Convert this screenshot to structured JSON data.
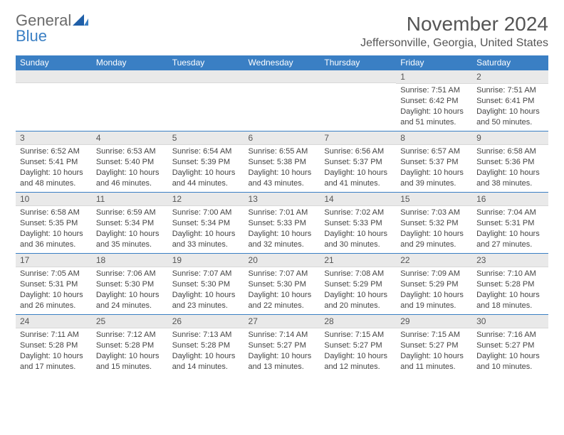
{
  "logo": {
    "line1": "General",
    "line2": "Blue"
  },
  "title": "November 2024",
  "location": "Jeffersonville, Georgia, United States",
  "colors": {
    "header_bg": "#3a7fc4",
    "header_text": "#ffffff",
    "daynum_bg": "#e9e9e9",
    "border": "#3a7fc4",
    "logo_gray": "#6b6b6b",
    "logo_blue": "#3a7fc4"
  },
  "dayHeaders": [
    "Sunday",
    "Monday",
    "Tuesday",
    "Wednesday",
    "Thursday",
    "Friday",
    "Saturday"
  ],
  "weeks": [
    [
      {
        "n": "",
        "sr": "",
        "ss": "",
        "dl": ""
      },
      {
        "n": "",
        "sr": "",
        "ss": "",
        "dl": ""
      },
      {
        "n": "",
        "sr": "",
        "ss": "",
        "dl": ""
      },
      {
        "n": "",
        "sr": "",
        "ss": "",
        "dl": ""
      },
      {
        "n": "",
        "sr": "",
        "ss": "",
        "dl": ""
      },
      {
        "n": "1",
        "sr": "Sunrise: 7:51 AM",
        "ss": "Sunset: 6:42 PM",
        "dl": "Daylight: 10 hours and 51 minutes."
      },
      {
        "n": "2",
        "sr": "Sunrise: 7:51 AM",
        "ss": "Sunset: 6:41 PM",
        "dl": "Daylight: 10 hours and 50 minutes."
      }
    ],
    [
      {
        "n": "3",
        "sr": "Sunrise: 6:52 AM",
        "ss": "Sunset: 5:41 PM",
        "dl": "Daylight: 10 hours and 48 minutes."
      },
      {
        "n": "4",
        "sr": "Sunrise: 6:53 AM",
        "ss": "Sunset: 5:40 PM",
        "dl": "Daylight: 10 hours and 46 minutes."
      },
      {
        "n": "5",
        "sr": "Sunrise: 6:54 AM",
        "ss": "Sunset: 5:39 PM",
        "dl": "Daylight: 10 hours and 44 minutes."
      },
      {
        "n": "6",
        "sr": "Sunrise: 6:55 AM",
        "ss": "Sunset: 5:38 PM",
        "dl": "Daylight: 10 hours and 43 minutes."
      },
      {
        "n": "7",
        "sr": "Sunrise: 6:56 AM",
        "ss": "Sunset: 5:37 PM",
        "dl": "Daylight: 10 hours and 41 minutes."
      },
      {
        "n": "8",
        "sr": "Sunrise: 6:57 AM",
        "ss": "Sunset: 5:37 PM",
        "dl": "Daylight: 10 hours and 39 minutes."
      },
      {
        "n": "9",
        "sr": "Sunrise: 6:58 AM",
        "ss": "Sunset: 5:36 PM",
        "dl": "Daylight: 10 hours and 38 minutes."
      }
    ],
    [
      {
        "n": "10",
        "sr": "Sunrise: 6:58 AM",
        "ss": "Sunset: 5:35 PM",
        "dl": "Daylight: 10 hours and 36 minutes."
      },
      {
        "n": "11",
        "sr": "Sunrise: 6:59 AM",
        "ss": "Sunset: 5:34 PM",
        "dl": "Daylight: 10 hours and 35 minutes."
      },
      {
        "n": "12",
        "sr": "Sunrise: 7:00 AM",
        "ss": "Sunset: 5:34 PM",
        "dl": "Daylight: 10 hours and 33 minutes."
      },
      {
        "n": "13",
        "sr": "Sunrise: 7:01 AM",
        "ss": "Sunset: 5:33 PM",
        "dl": "Daylight: 10 hours and 32 minutes."
      },
      {
        "n": "14",
        "sr": "Sunrise: 7:02 AM",
        "ss": "Sunset: 5:33 PM",
        "dl": "Daylight: 10 hours and 30 minutes."
      },
      {
        "n": "15",
        "sr": "Sunrise: 7:03 AM",
        "ss": "Sunset: 5:32 PM",
        "dl": "Daylight: 10 hours and 29 minutes."
      },
      {
        "n": "16",
        "sr": "Sunrise: 7:04 AM",
        "ss": "Sunset: 5:31 PM",
        "dl": "Daylight: 10 hours and 27 minutes."
      }
    ],
    [
      {
        "n": "17",
        "sr": "Sunrise: 7:05 AM",
        "ss": "Sunset: 5:31 PM",
        "dl": "Daylight: 10 hours and 26 minutes."
      },
      {
        "n": "18",
        "sr": "Sunrise: 7:06 AM",
        "ss": "Sunset: 5:30 PM",
        "dl": "Daylight: 10 hours and 24 minutes."
      },
      {
        "n": "19",
        "sr": "Sunrise: 7:07 AM",
        "ss": "Sunset: 5:30 PM",
        "dl": "Daylight: 10 hours and 23 minutes."
      },
      {
        "n": "20",
        "sr": "Sunrise: 7:07 AM",
        "ss": "Sunset: 5:30 PM",
        "dl": "Daylight: 10 hours and 22 minutes."
      },
      {
        "n": "21",
        "sr": "Sunrise: 7:08 AM",
        "ss": "Sunset: 5:29 PM",
        "dl": "Daylight: 10 hours and 20 minutes."
      },
      {
        "n": "22",
        "sr": "Sunrise: 7:09 AM",
        "ss": "Sunset: 5:29 PM",
        "dl": "Daylight: 10 hours and 19 minutes."
      },
      {
        "n": "23",
        "sr": "Sunrise: 7:10 AM",
        "ss": "Sunset: 5:28 PM",
        "dl": "Daylight: 10 hours and 18 minutes."
      }
    ],
    [
      {
        "n": "24",
        "sr": "Sunrise: 7:11 AM",
        "ss": "Sunset: 5:28 PM",
        "dl": "Daylight: 10 hours and 17 minutes."
      },
      {
        "n": "25",
        "sr": "Sunrise: 7:12 AM",
        "ss": "Sunset: 5:28 PM",
        "dl": "Daylight: 10 hours and 15 minutes."
      },
      {
        "n": "26",
        "sr": "Sunrise: 7:13 AM",
        "ss": "Sunset: 5:28 PM",
        "dl": "Daylight: 10 hours and 14 minutes."
      },
      {
        "n": "27",
        "sr": "Sunrise: 7:14 AM",
        "ss": "Sunset: 5:27 PM",
        "dl": "Daylight: 10 hours and 13 minutes."
      },
      {
        "n": "28",
        "sr": "Sunrise: 7:15 AM",
        "ss": "Sunset: 5:27 PM",
        "dl": "Daylight: 10 hours and 12 minutes."
      },
      {
        "n": "29",
        "sr": "Sunrise: 7:15 AM",
        "ss": "Sunset: 5:27 PM",
        "dl": "Daylight: 10 hours and 11 minutes."
      },
      {
        "n": "30",
        "sr": "Sunrise: 7:16 AM",
        "ss": "Sunset: 5:27 PM",
        "dl": "Daylight: 10 hours and 10 minutes."
      }
    ]
  ]
}
